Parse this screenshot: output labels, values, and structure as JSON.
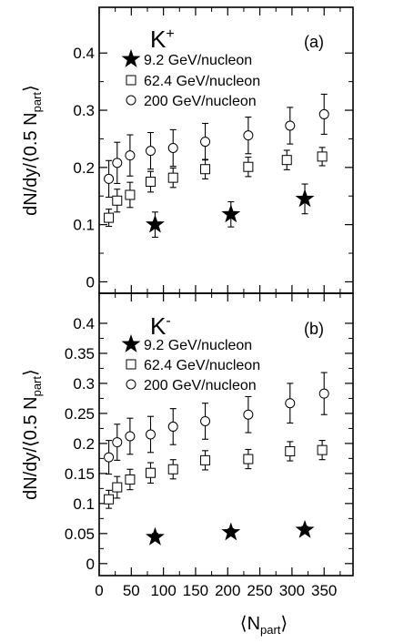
{
  "chart_data": [
    {
      "type": "scatter",
      "particle": "K",
      "particle_charge": "+",
      "panel_tag": "(a)",
      "ylabel": "dN/dy/⟨0.5 N",
      "ylabel_sub": "part",
      "ylabel_close": "⟩",
      "ylim": [
        -0.02,
        0.48
      ],
      "yticks": [
        {
          "v": 0,
          "label": "0"
        },
        {
          "v": 0.1,
          "label": "0.1"
        },
        {
          "v": 0.2,
          "label": "0.2"
        },
        {
          "v": 0.3,
          "label": "0.3"
        },
        {
          "v": 0.4,
          "label": "0.4"
        }
      ],
      "series": [
        {
          "name": "9.2 GeV/nucleon",
          "marker": "star",
          "points": [
            {
              "x": 87,
              "y": 0.1,
              "err": 0.022
            },
            {
              "x": 205,
              "y": 0.118,
              "err": 0.022
            },
            {
              "x": 320,
              "y": 0.145,
              "err": 0.026
            }
          ]
        },
        {
          "name": "62.4 GeV/nucleon",
          "marker": "square",
          "points": [
            {
              "x": 15,
              "y": 0.112,
              "err": 0.015
            },
            {
              "x": 28,
              "y": 0.142,
              "err": 0.02
            },
            {
              "x": 48,
              "y": 0.152,
              "err": 0.022
            },
            {
              "x": 80,
              "y": 0.175,
              "err": 0.018
            },
            {
              "x": 115,
              "y": 0.182,
              "err": 0.017
            },
            {
              "x": 165,
              "y": 0.197,
              "err": 0.017
            },
            {
              "x": 232,
              "y": 0.201,
              "err": 0.017
            },
            {
              "x": 292,
              "y": 0.213,
              "err": 0.017
            },
            {
              "x": 347,
              "y": 0.219,
              "err": 0.016
            }
          ]
        },
        {
          "name": "200 GeV/nucleon",
          "marker": "circle",
          "points": [
            {
              "x": 15,
              "y": 0.18,
              "err": 0.032
            },
            {
              "x": 28,
              "y": 0.208,
              "err": 0.036
            },
            {
              "x": 48,
              "y": 0.221,
              "err": 0.036
            },
            {
              "x": 80,
              "y": 0.229,
              "err": 0.032
            },
            {
              "x": 115,
              "y": 0.234,
              "err": 0.032
            },
            {
              "x": 165,
              "y": 0.245,
              "err": 0.032
            },
            {
              "x": 232,
              "y": 0.256,
              "err": 0.032
            },
            {
              "x": 297,
              "y": 0.273,
              "err": 0.032
            },
            {
              "x": 350,
              "y": 0.293,
              "err": 0.035
            }
          ]
        }
      ]
    },
    {
      "type": "scatter",
      "particle": "K",
      "particle_charge": "-",
      "panel_tag": "(b)",
      "ylabel": "dN/dy/⟨0.5 N",
      "ylabel_sub": "part",
      "ylabel_close": "⟩",
      "xlabel": "⟨N",
      "xlabel_sub": "part",
      "xlabel_close": "⟩",
      "ylim": [
        -0.02,
        0.45
      ],
      "xlim": [
        0,
        395
      ],
      "xticks": [
        {
          "v": 0,
          "label": "0"
        },
        {
          "v": 50,
          "label": "50"
        },
        {
          "v": 100,
          "label": "100"
        },
        {
          "v": 150,
          "label": "150"
        },
        {
          "v": 200,
          "label": "200"
        },
        {
          "v": 250,
          "label": "250"
        },
        {
          "v": 300,
          "label": "300"
        },
        {
          "v": 350,
          "label": "350"
        }
      ],
      "yticks": [
        {
          "v": 0,
          "label": "0"
        },
        {
          "v": 0.05,
          "label": "0.05"
        },
        {
          "v": 0.1,
          "label": "0.1"
        },
        {
          "v": 0.15,
          "label": "0.15"
        },
        {
          "v": 0.2,
          "label": "0.2"
        },
        {
          "v": 0.25,
          "label": "0.25"
        },
        {
          "v": 0.3,
          "label": "0.3"
        },
        {
          "v": 0.35,
          "label": "0.35"
        },
        {
          "v": 0.4,
          "label": "0.4"
        }
      ],
      "series": [
        {
          "name": "9.2 GeV/nucleon",
          "marker": "star",
          "points": [
            {
              "x": 87,
              "y": 0.044,
              "err": 0.006
            },
            {
              "x": 205,
              "y": 0.052,
              "err": 0.006
            },
            {
              "x": 320,
              "y": 0.056,
              "err": 0.006
            }
          ]
        },
        {
          "name": "62.4 GeV/nucleon",
          "marker": "square",
          "points": [
            {
              "x": 15,
              "y": 0.107,
              "err": 0.015
            },
            {
              "x": 28,
              "y": 0.127,
              "err": 0.018
            },
            {
              "x": 48,
              "y": 0.14,
              "err": 0.017
            },
            {
              "x": 80,
              "y": 0.151,
              "err": 0.017
            },
            {
              "x": 115,
              "y": 0.157,
              "err": 0.016
            },
            {
              "x": 165,
              "y": 0.172,
              "err": 0.016
            },
            {
              "x": 232,
              "y": 0.174,
              "err": 0.016
            },
            {
              "x": 297,
              "y": 0.187,
              "err": 0.016
            },
            {
              "x": 347,
              "y": 0.189,
              "err": 0.016
            }
          ]
        },
        {
          "name": "200 GeV/nucleon",
          "marker": "circle",
          "points": [
            {
              "x": 15,
              "y": 0.177,
              "err": 0.028
            },
            {
              "x": 28,
              "y": 0.202,
              "err": 0.03
            },
            {
              "x": 48,
              "y": 0.212,
              "err": 0.03
            },
            {
              "x": 80,
              "y": 0.215,
              "err": 0.03
            },
            {
              "x": 115,
              "y": 0.228,
              "err": 0.03
            },
            {
              "x": 165,
              "y": 0.237,
              "err": 0.03
            },
            {
              "x": 232,
              "y": 0.248,
              "err": 0.03
            },
            {
              "x": 297,
              "y": 0.267,
              "err": 0.033
            },
            {
              "x": 350,
              "y": 0.283,
              "err": 0.035
            }
          ]
        }
      ]
    }
  ]
}
